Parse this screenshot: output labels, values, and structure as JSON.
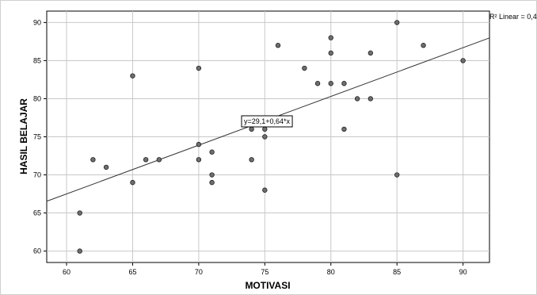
{
  "chart_data": {
    "type": "scatter",
    "xlabel": "MOTIVASI",
    "ylabel": "HASIL BELAJAR",
    "xlim": [
      58.5,
      92
    ],
    "ylim": [
      58.5,
      91.5
    ],
    "xticks": [
      60,
      65,
      70,
      75,
      80,
      85,
      90
    ],
    "yticks": [
      60,
      65,
      70,
      75,
      80,
      85,
      90
    ],
    "grid": true,
    "points": [
      {
        "x": 61,
        "y": 65
      },
      {
        "x": 61,
        "y": 60
      },
      {
        "x": 62,
        "y": 72
      },
      {
        "x": 63,
        "y": 71
      },
      {
        "x": 65,
        "y": 83
      },
      {
        "x": 65,
        "y": 69
      },
      {
        "x": 66,
        "y": 72
      },
      {
        "x": 67,
        "y": 72
      },
      {
        "x": 70,
        "y": 84
      },
      {
        "x": 70,
        "y": 74
      },
      {
        "x": 70,
        "y": 72
      },
      {
        "x": 71,
        "y": 73
      },
      {
        "x": 71,
        "y": 70
      },
      {
        "x": 71,
        "y": 69
      },
      {
        "x": 74,
        "y": 76
      },
      {
        "x": 74,
        "y": 72
      },
      {
        "x": 75,
        "y": 76
      },
      {
        "x": 75,
        "y": 75
      },
      {
        "x": 75,
        "y": 68
      },
      {
        "x": 76,
        "y": 87
      },
      {
        "x": 78,
        "y": 84
      },
      {
        "x": 79,
        "y": 82
      },
      {
        "x": 80,
        "y": 88
      },
      {
        "x": 80,
        "y": 86
      },
      {
        "x": 80,
        "y": 82
      },
      {
        "x": 81,
        "y": 82
      },
      {
        "x": 81,
        "y": 76
      },
      {
        "x": 82,
        "y": 80
      },
      {
        "x": 83,
        "y": 86
      },
      {
        "x": 83,
        "y": 80
      },
      {
        "x": 85,
        "y": 90
      },
      {
        "x": 85,
        "y": 70
      },
      {
        "x": 87,
        "y": 87
      },
      {
        "x": 90,
        "y": 85
      }
    ],
    "fit_line": {
      "intercept": 29.1,
      "slope": 0.64
    },
    "equation_label": "y=29,1+0,64*x",
    "r2_label": "R² Linear = 0,4",
    "colors": {
      "point_fill": "#6e6e6e",
      "point_stroke": "#222222",
      "grid": "#c8c8c8",
      "line": "#333333"
    }
  }
}
